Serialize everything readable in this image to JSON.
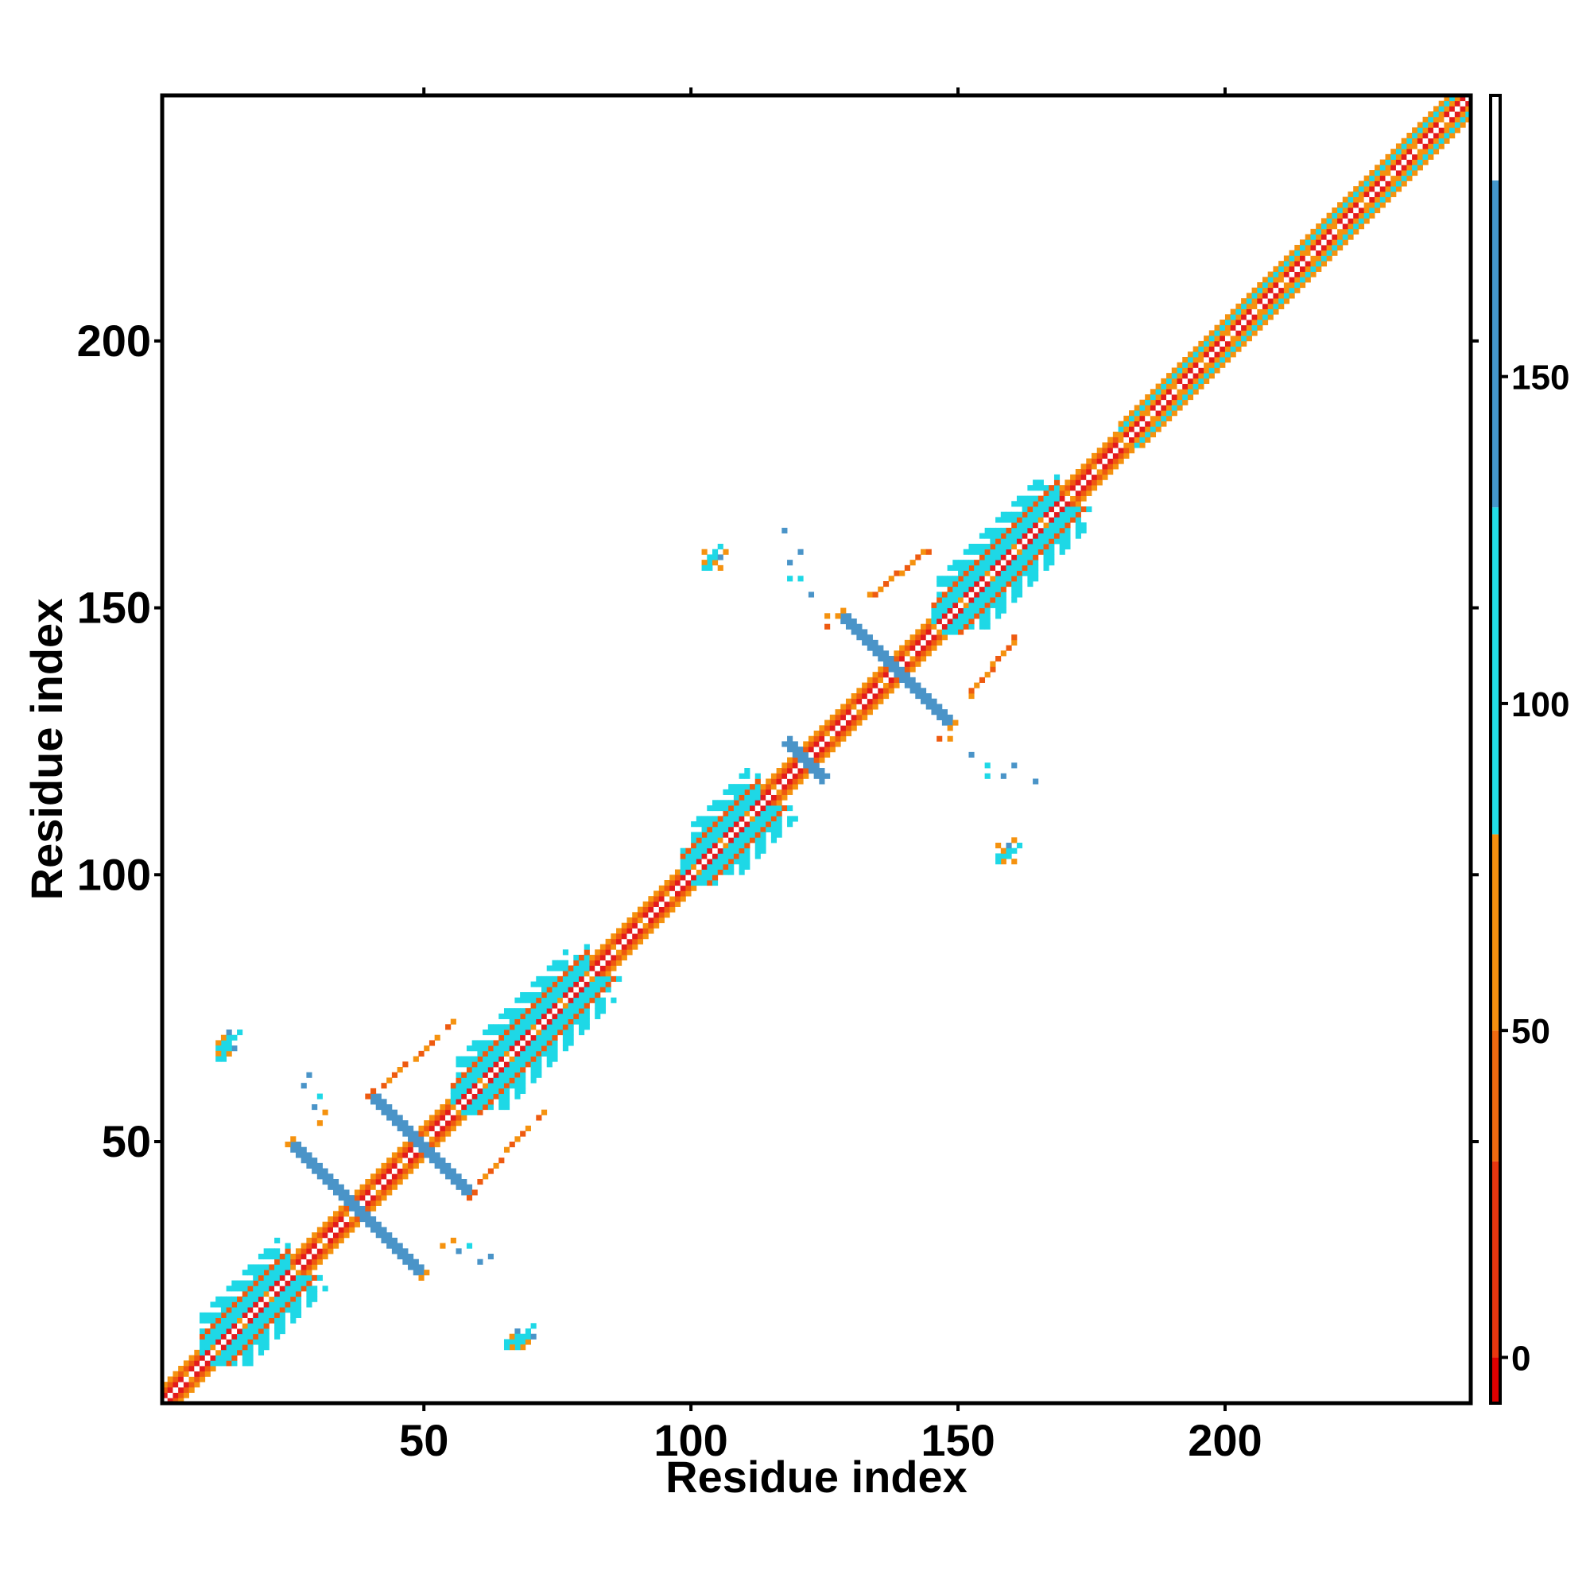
{
  "chart_data": {
    "type": "heatmap",
    "xlabel": "Residue index",
    "ylabel": "Residue index",
    "xlim": [
      1,
      245
    ],
    "ylim": [
      1,
      245
    ],
    "xticks": [
      50,
      100,
      150,
      200
    ],
    "yticks": [
      50,
      100,
      150,
      200
    ],
    "colorbar": {
      "range": [
        -7,
        193
      ],
      "ticks": [
        0,
        50,
        100,
        150
      ],
      "bands": [
        {
          "from": -7,
          "to": 0,
          "color": "#dd0000"
        },
        {
          "from": 0,
          "to": 30,
          "color": "#e8360f"
        },
        {
          "from": 30,
          "to": 50,
          "color": "#ef6a10"
        },
        {
          "from": 50,
          "to": 80,
          "color": "#f59010"
        },
        {
          "from": 80,
          "to": 130,
          "color": "#22dde8"
        },
        {
          "from": 130,
          "to": 180,
          "color": "#4497cc"
        },
        {
          "from": 180,
          "to": 193,
          "color": "#ffffff"
        }
      ]
    },
    "colors": {
      "red": "#e31a1c",
      "orange_red": "#ee5a10",
      "orange": "#f5920f",
      "cyan": "#1ed8e6",
      "steel_blue": "#4a94c8"
    },
    "features": [
      {
        "kind": "diagonal_band",
        "from": 1,
        "to": 245,
        "value_profile": "mixed red/orange/cyan"
      },
      {
        "kind": "helix",
        "range": [
          8,
          24
        ],
        "value": 100
      },
      {
        "kind": "helix",
        "range": [
          55,
          80
        ],
        "value": 100
      },
      {
        "kind": "helix",
        "range": [
          98,
          112
        ],
        "value": 100
      },
      {
        "kind": "helix",
        "range": [
          145,
          168
        ],
        "value": 100
      },
      {
        "kind": "helix",
        "range": [
          180,
          245
        ],
        "value": 70
      },
      {
        "kind": "antiparallel_strand",
        "center": [
          37,
          37
        ],
        "half_length": 12,
        "value": 150
      },
      {
        "kind": "antiparallel_strand",
        "center": [
          49,
          49
        ],
        "half_length": 9,
        "value": 150
      },
      {
        "kind": "antiparallel_strand",
        "center": [
          138,
          138
        ],
        "half_length": 10,
        "value": 150
      },
      {
        "kind": "antiparallel_strand",
        "center": [
          121,
          121
        ],
        "half_length": 3,
        "value": 150
      },
      {
        "kind": "contact_cluster",
        "x": 12,
        "y": 68,
        "value": 100
      },
      {
        "kind": "contact_cluster",
        "x": 68,
        "y": 12,
        "value": 100
      },
      {
        "kind": "contact_cluster",
        "x": 103,
        "y": 158,
        "value": 60
      },
      {
        "kind": "contact_cluster",
        "x": 158,
        "y": 103,
        "value": 60
      }
    ]
  }
}
